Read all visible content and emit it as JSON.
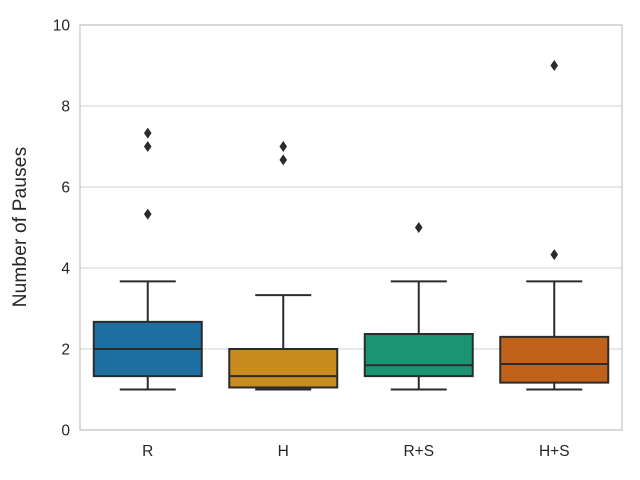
{
  "chart_data": {
    "type": "box",
    "title": "",
    "xlabel": "",
    "ylabel": "Number of Pauses",
    "categories": [
      "R",
      "H",
      "R+S",
      "H+S"
    ],
    "ylim": [
      0,
      10
    ],
    "yticks": [
      0,
      2,
      4,
      6,
      8,
      10
    ],
    "grid": "horizontal",
    "legend": "none",
    "series": [
      {
        "name": "R",
        "whisker_low": 1.0,
        "q1": 1.33,
        "median": 2.0,
        "q3": 2.67,
        "whisker_high": 3.67,
        "outliers": [
          5.33,
          7.0,
          7.33
        ],
        "color": "#1c70a0"
      },
      {
        "name": "H",
        "whisker_low": 1.0,
        "q1": 1.05,
        "median": 1.33,
        "q3": 2.0,
        "whisker_high": 3.33,
        "outliers": [
          6.67,
          7.0
        ],
        "color": "#c78b1f"
      },
      {
        "name": "R+S",
        "whisker_low": 1.0,
        "q1": 1.33,
        "median": 1.6,
        "q3": 2.37,
        "whisker_high": 3.67,
        "outliers": [
          5.0
        ],
        "color": "#1a9472"
      },
      {
        "name": "H+S",
        "whisker_low": 1.0,
        "q1": 1.17,
        "median": 1.63,
        "q3": 2.3,
        "whisker_high": 3.67,
        "outliers": [
          4.33,
          9.0
        ],
        "color": "#c06219"
      }
    ],
    "colors": {
      "box_edge": "#2b2b2b",
      "median_line": "#2b2b2b",
      "outlier": "#2b2b2b",
      "grid": "#d9d9d9",
      "spine": "#cccccc",
      "text": "#262626",
      "background": "#ffffff"
    }
  }
}
